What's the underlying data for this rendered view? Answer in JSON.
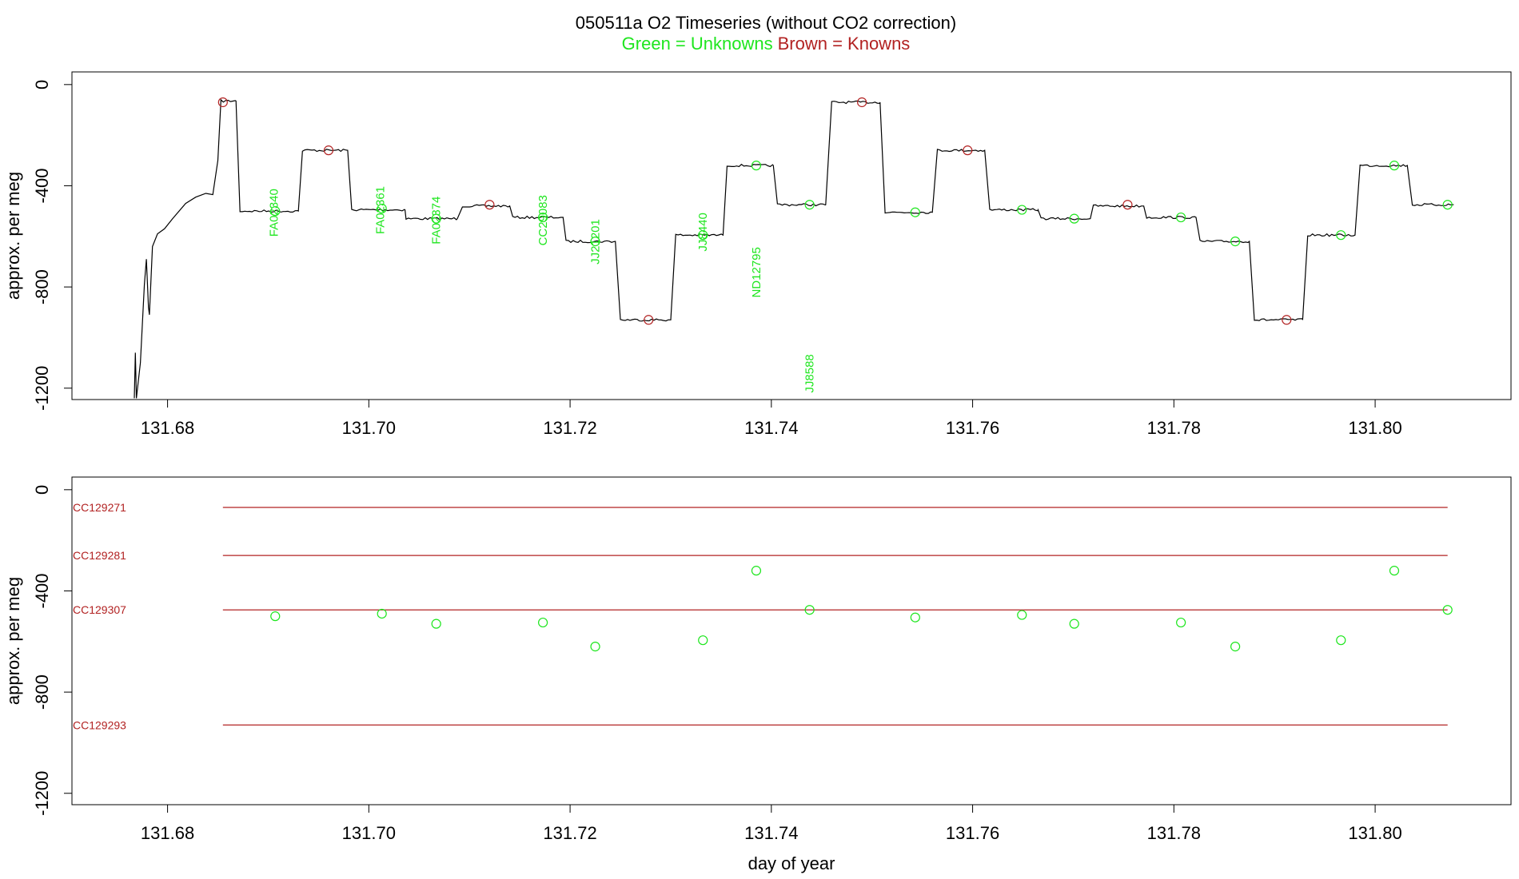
{
  "colors": {
    "unknown": "#1ee61e",
    "known": "#b22222",
    "trace": "#000000",
    "axes": "#000000"
  },
  "title": {
    "main": "050511a   O2 Timeseries (without CO2 correction)",
    "sub_unknowns": "Green = Unknowns",
    "sub_knowns": "Brown = Knowns"
  },
  "chart_data": [
    {
      "type": "line",
      "title": "050511a   O2 Timeseries (without CO2 correction)",
      "xlabel": "",
      "ylabel": "approx. per meg",
      "xlim": [
        131.6705,
        131.8135
      ],
      "ylim": [
        -1245,
        50
      ],
      "x_ticks": [
        "131.68",
        "131.70",
        "131.72",
        "131.74",
        "131.76",
        "131.78",
        "131.80"
      ],
      "y_ticks": [
        "0",
        "-400",
        "-800",
        "-1200"
      ],
      "grid": false,
      "trace_plateaus": [
        {
          "start": 131.6853,
          "end": 131.6868,
          "value": -65
        },
        {
          "start": 131.6872,
          "end": 131.693,
          "value": -500
        },
        {
          "start": 131.6934,
          "end": 131.6979,
          "value": -260
        },
        {
          "start": 131.6983,
          "end": 131.7036,
          "value": -495
        },
        {
          "start": 131.7037,
          "end": 131.7088,
          "value": -530
        },
        {
          "start": 131.7093,
          "end": 131.714,
          "value": -480
        },
        {
          "start": 131.7143,
          "end": 131.7193,
          "value": -525
        },
        {
          "start": 131.7196,
          "end": 131.7245,
          "value": -620
        },
        {
          "start": 131.725,
          "end": 131.73,
          "value": -930
        },
        {
          "start": 131.7305,
          "end": 131.7352,
          "value": -595
        },
        {
          "start": 131.7356,
          "end": 131.7402,
          "value": -320
        },
        {
          "start": 131.7406,
          "end": 131.7454,
          "value": -475
        },
        {
          "start": 131.746,
          "end": 131.7508,
          "value": -70
        },
        {
          "start": 131.7513,
          "end": 131.756,
          "value": -505
        },
        {
          "start": 131.7565,
          "end": 131.7612,
          "value": -260
        },
        {
          "start": 131.7617,
          "end": 131.7665,
          "value": -495
        },
        {
          "start": 131.7668,
          "end": 131.7717,
          "value": -530
        },
        {
          "start": 131.772,
          "end": 131.777,
          "value": -480
        },
        {
          "start": 131.7773,
          "end": 131.7822,
          "value": -525
        },
        {
          "start": 131.7826,
          "end": 131.7875,
          "value": -620
        },
        {
          "start": 131.788,
          "end": 131.7928,
          "value": -930
        },
        {
          "start": 131.7933,
          "end": 131.798,
          "value": -595
        },
        {
          "start": 131.7985,
          "end": 131.8032,
          "value": -320
        },
        {
          "start": 131.8037,
          "end": 131.8078,
          "value": -475
        }
      ],
      "knowns": [
        {
          "x": 131.6855,
          "y": -70
        },
        {
          "x": 131.696,
          "y": -260
        },
        {
          "x": 131.712,
          "y": -475
        },
        {
          "x": 131.7278,
          "y": -930
        },
        {
          "x": 131.749,
          "y": -70
        },
        {
          "x": 131.7595,
          "y": -260
        },
        {
          "x": 131.7754,
          "y": -475
        },
        {
          "x": 131.7912,
          "y": -930
        }
      ],
      "unknowns": [
        {
          "x": 131.6907,
          "y": -500,
          "label": "FA02340"
        },
        {
          "x": 131.7013,
          "y": -490,
          "label": "FA02361"
        },
        {
          "x": 131.7067,
          "y": -530,
          "label": "FA02374"
        },
        {
          "x": 131.7173,
          "y": -525,
          "label": "CC29083"
        },
        {
          "x": 131.7225,
          "y": -620,
          "label": "JJ21201"
        },
        {
          "x": 131.7332,
          "y": -595,
          "label": "JJ8440"
        },
        {
          "x": 131.7385,
          "y": -320,
          "label": "ND12795"
        },
        {
          "x": 131.7438,
          "y": -475,
          "label": "JJ8588"
        },
        {
          "x": 131.7543,
          "y": -505
        },
        {
          "x": 131.7649,
          "y": -495
        },
        {
          "x": 131.7701,
          "y": -530
        },
        {
          "x": 131.7807,
          "y": -525
        },
        {
          "x": 131.7861,
          "y": -620
        },
        {
          "x": 131.7966,
          "y": -595
        },
        {
          "x": 131.8019,
          "y": -320
        },
        {
          "x": 131.8072,
          "y": -475
        }
      ]
    },
    {
      "type": "scatter",
      "title": "",
      "xlabel": "day of year",
      "ylabel": "approx. per meg",
      "xlim": [
        131.6705,
        131.8135
      ],
      "ylim": [
        -1245,
        50
      ],
      "x_ticks": [
        "131.68",
        "131.70",
        "131.72",
        "131.74",
        "131.76",
        "131.78",
        "131.80"
      ],
      "y_ticks": [
        "0",
        "-400",
        "-800",
        "-1200"
      ],
      "grid": false,
      "reference_lines": [
        {
          "name": "CC129271",
          "value": -70,
          "x_start": 131.6855,
          "x_end": 131.8072
        },
        {
          "name": "CC129281",
          "value": -260,
          "x_start": 131.6855,
          "x_end": 131.8072
        },
        {
          "name": "CC129307",
          "value": -475,
          "x_start": 131.6855,
          "x_end": 131.8072
        },
        {
          "name": "CC129293",
          "value": -930,
          "x_start": 131.6855,
          "x_end": 131.8072
        }
      ],
      "unknowns": [
        {
          "x": 131.6907,
          "y": -500
        },
        {
          "x": 131.7013,
          "y": -490
        },
        {
          "x": 131.7067,
          "y": -530
        },
        {
          "x": 131.7173,
          "y": -525
        },
        {
          "x": 131.7225,
          "y": -620
        },
        {
          "x": 131.7332,
          "y": -595
        },
        {
          "x": 131.7385,
          "y": -320
        },
        {
          "x": 131.7438,
          "y": -475
        },
        {
          "x": 131.7543,
          "y": -505
        },
        {
          "x": 131.7649,
          "y": -495
        },
        {
          "x": 131.7701,
          "y": -530
        },
        {
          "x": 131.7807,
          "y": -525
        },
        {
          "x": 131.7861,
          "y": -620
        },
        {
          "x": 131.7966,
          "y": -595
        },
        {
          "x": 131.8019,
          "y": -320
        },
        {
          "x": 131.8072,
          "y": -475
        }
      ]
    }
  ]
}
